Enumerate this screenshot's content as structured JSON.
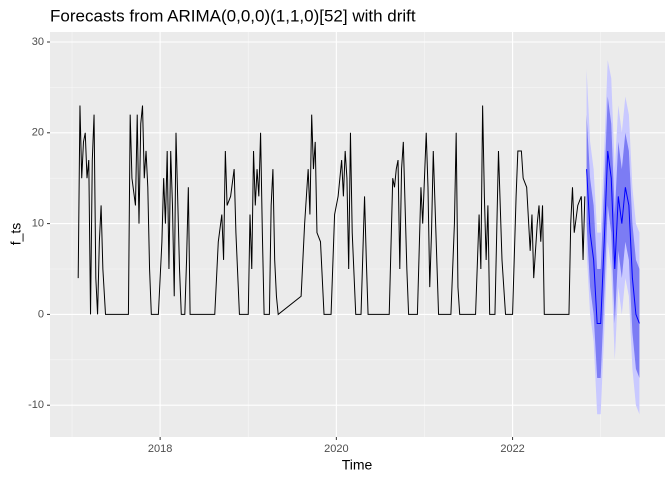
{
  "chart_data": {
    "type": "line",
    "title": "Forecasts from ARIMA(0,0,0)(1,1,0)[52] with drift",
    "x_label": "Time",
    "y_label": "f_ts",
    "xlim": [
      2016.75,
      2023.73
    ],
    "xticks": [
      2018,
      2020,
      2022
    ],
    "ylim": [
      -13.5,
      31.1
    ],
    "yticks": [
      -10,
      0,
      10,
      20,
      30
    ],
    "grid": true,
    "series": [
      {
        "color": "#000000",
        "x": [
          2017.07,
          2017.09,
          2017.11,
          2017.13,
          2017.15,
          2017.17,
          2017.19,
          2017.21,
          2017.23,
          2017.25,
          2017.27,
          2017.29,
          2017.31,
          2017.33,
          2017.35,
          2017.38,
          2017.64,
          2017.66,
          2017.68,
          2017.72,
          2017.74,
          2017.76,
          2017.78,
          2017.8,
          2017.82,
          2017.84,
          2017.86,
          2017.88,
          2017.9,
          2017.98,
          2018.02,
          2018.04,
          2018.06,
          2018.08,
          2018.1,
          2018.12,
          2018.14,
          2018.16,
          2018.18,
          2018.22,
          2018.24,
          2018.28,
          2018.3,
          2018.32,
          2018.34,
          2018.62,
          2018.66,
          2018.7,
          2018.72,
          2018.74,
          2018.76,
          2018.8,
          2018.84,
          2018.86,
          2018.9,
          2019.0,
          2019.02,
          2019.04,
          2019.06,
          2019.08,
          2019.1,
          2019.12,
          2019.14,
          2019.16,
          2019.18,
          2019.24,
          2019.26,
          2019.28,
          2019.3,
          2019.32,
          2019.34,
          2019.6,
          2019.64,
          2019.68,
          2019.7,
          2019.72,
          2019.74,
          2019.76,
          2019.78,
          2019.82,
          2019.86,
          2019.94,
          2019.98,
          2020.02,
          2020.06,
          2020.08,
          2020.1,
          2020.12,
          2020.14,
          2020.16,
          2020.18,
          2020.22,
          2020.28,
          2020.32,
          2020.34,
          2020.36,
          2020.6,
          2020.64,
          2020.66,
          2020.68,
          2020.7,
          2020.72,
          2020.74,
          2020.76,
          2020.78,
          2020.8,
          2020.82,
          2020.92,
          2020.96,
          2020.98,
          2021.02,
          2021.04,
          2021.06,
          2021.08,
          2021.1,
          2021.12,
          2021.16,
          2021.3,
          2021.34,
          2021.36,
          2021.38,
          2021.4,
          2021.58,
          2021.62,
          2021.64,
          2021.66,
          2021.68,
          2021.7,
          2021.72,
          2021.74,
          2021.8,
          2021.84,
          2021.88,
          2021.92,
          2022.0,
          2022.04,
          2022.06,
          2022.1,
          2022.12,
          2022.16,
          2022.2,
          2022.22,
          2022.24,
          2022.28,
          2022.3,
          2022.32,
          2022.34,
          2022.36,
          2022.64,
          2022.66,
          2022.68,
          2022.7,
          2022.74,
          2022.78,
          2022.8,
          2022.82
        ],
        "values": [
          4,
          23,
          15,
          19,
          20,
          15,
          17,
          0,
          17,
          22,
          4,
          0,
          8,
          12,
          5,
          0,
          0,
          22,
          15,
          12,
          22,
          10,
          21,
          23,
          15,
          18,
          14,
          5,
          0,
          0,
          8,
          15,
          10,
          18,
          5,
          18,
          12,
          2,
          20,
          5,
          0,
          0,
          6,
          14,
          0,
          0,
          8,
          11,
          6,
          18,
          12,
          13,
          16,
          9,
          0,
          0,
          11,
          5,
          18,
          12,
          16,
          13,
          20,
          9,
          0,
          0,
          12,
          16,
          6,
          2,
          0,
          2,
          10,
          16,
          11,
          22,
          16,
          19,
          9,
          8,
          0,
          0,
          11,
          13,
          17,
          13,
          18,
          15,
          5,
          20,
          9,
          0,
          0,
          13,
          6,
          0,
          0,
          15,
          14,
          16,
          17,
          5,
          16,
          19,
          12,
          5,
          0,
          0,
          14,
          10,
          20,
          14,
          3,
          9,
          18,
          12,
          0,
          0,
          10,
          20,
          3,
          0,
          0,
          11,
          5,
          23,
          13,
          6,
          12,
          0,
          0,
          18,
          6,
          0,
          0,
          13,
          18,
          18,
          15,
          14,
          7,
          11,
          4,
          10,
          12,
          8,
          12,
          0,
          0,
          10,
          14,
          9,
          12,
          13,
          6,
          13
        ]
      },
      {
        "color": "#0000ff",
        "x": [
          2022.84,
          2022.88,
          2022.92,
          2022.96,
          2023.0,
          2023.04,
          2023.08,
          2023.12,
          2023.16,
          2023.2,
          2023.24,
          2023.28,
          2023.32,
          2023.36,
          2023.4,
          2023.44
        ],
        "values": [
          16,
          9,
          6,
          -1,
          -1,
          8,
          18,
          15,
          5,
          13,
          10,
          14,
          12,
          4,
          0,
          -1
        ]
      }
    ],
    "bands": [
      {
        "color": "#c9c9ff",
        "x": [
          2022.84,
          2022.88,
          2022.92,
          2022.96,
          2023.0,
          2023.04,
          2023.08,
          2023.12,
          2023.16,
          2023.2,
          2023.24,
          2023.28,
          2023.32,
          2023.36,
          2023.4,
          2023.44
        ],
        "lower": [
          7,
          0,
          -3,
          -11,
          -11,
          -2,
          8,
          5,
          -5,
          3,
          0,
          4,
          2,
          -6,
          -10,
          -11
        ],
        "upper": [
          27,
          19,
          16,
          9,
          9,
          18,
          28,
          26,
          16,
          23,
          20,
          24,
          22,
          14,
          10,
          9
        ]
      },
      {
        "color": "#7c7cf4",
        "x": [
          2022.84,
          2022.88,
          2022.92,
          2022.96,
          2023.0,
          2023.04,
          2023.08,
          2023.12,
          2023.16,
          2023.2,
          2023.24,
          2023.28,
          2023.32,
          2023.36,
          2023.4,
          2023.44
        ],
        "lower": [
          10,
          3,
          0,
          -7,
          -7,
          2,
          12,
          9,
          -1,
          7,
          4,
          8,
          6,
          -2,
          -6,
          -7
        ],
        "upper": [
          22,
          15,
          12,
          5,
          5,
          14,
          24,
          21,
          11,
          19,
          16,
          20,
          18,
          10,
          6,
          5
        ]
      }
    ]
  }
}
